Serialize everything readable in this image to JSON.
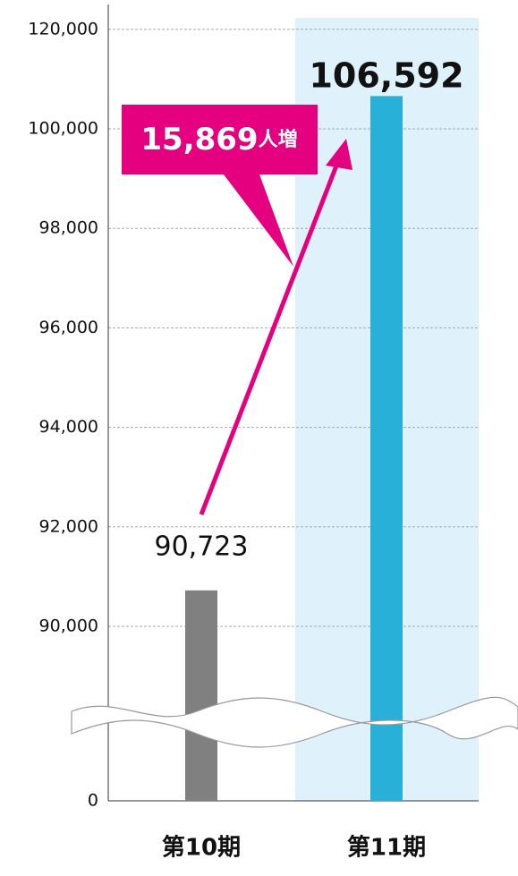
{
  "chart_data": {
    "type": "bar",
    "categories": [
      "第10期",
      "第11期"
    ],
    "values": [
      90723,
      106592
    ],
    "value_labels": [
      "90,723",
      "106,592"
    ],
    "colors": [
      "#808080",
      "#29b0d8"
    ],
    "ylim": [
      0,
      120000
    ],
    "yticks": [
      0,
      {
        "value": 90000,
        "label": "90,000"
      },
      {
        "value": 92000,
        "label": "92,000"
      },
      {
        "value": 94000,
        "label": "94,000"
      },
      {
        "value": 96000,
        "label": "96,000"
      },
      {
        "value": 98000,
        "label": "98,000"
      },
      {
        "value": 100000,
        "label": "100,000"
      },
      {
        "value": 120000,
        "label": "120,000"
      }
    ],
    "grid": true,
    "annotation": "15,869",
    "annotation_unit": "人増"
  }
}
